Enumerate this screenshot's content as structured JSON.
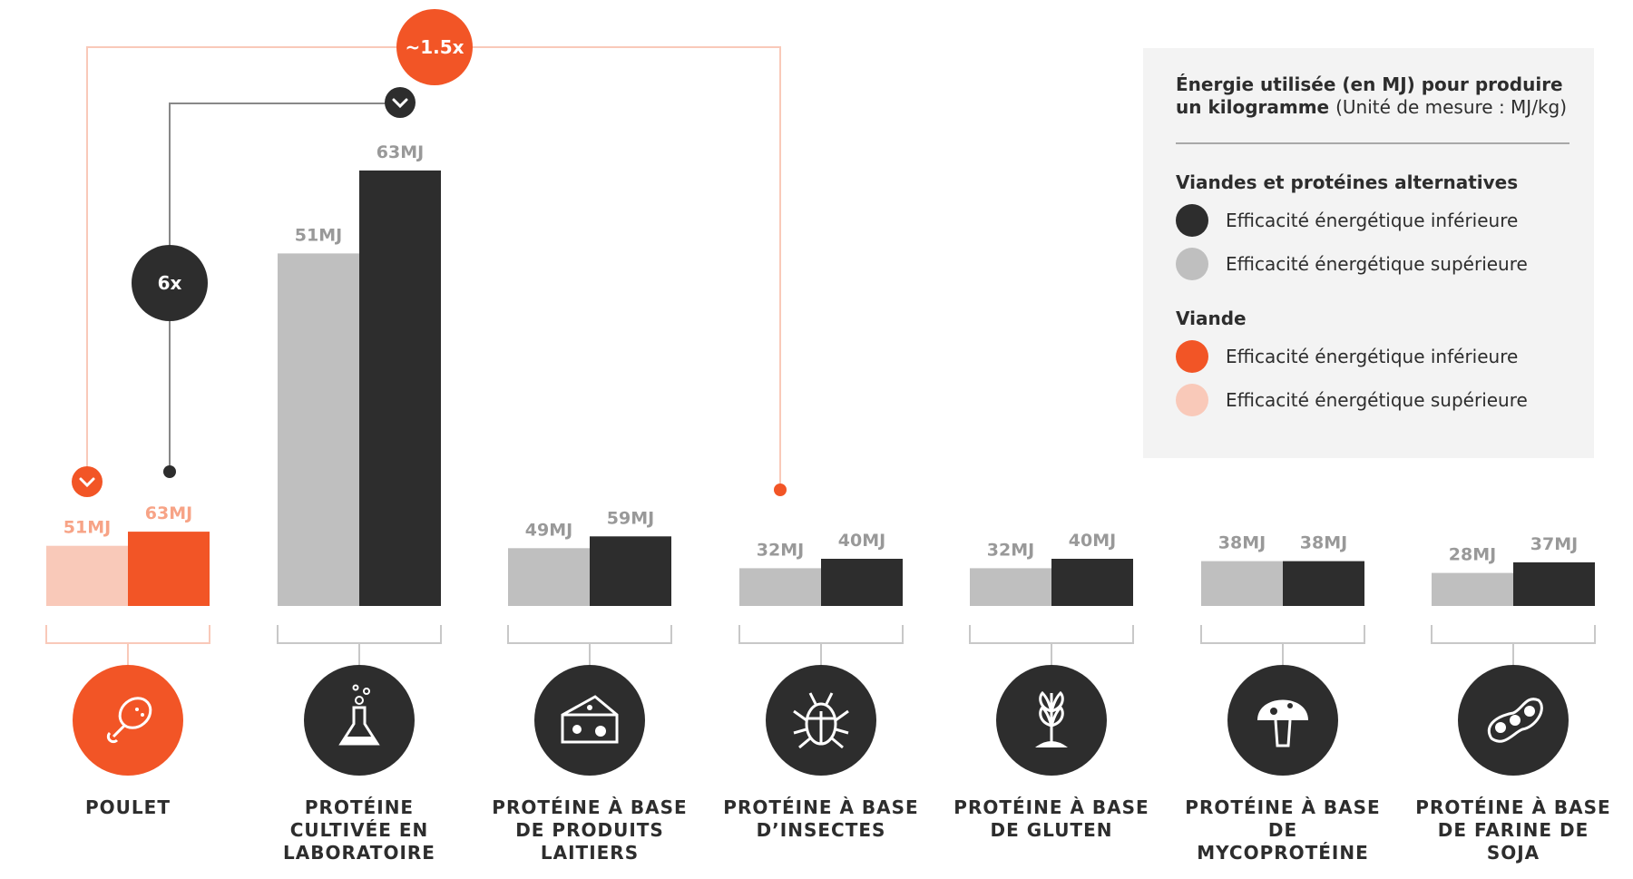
{
  "colors": {
    "orange": "#F25526",
    "light_orange": "#F9C9B9",
    "dark": "#2D2D2D",
    "gray": "#BFBFBF",
    "value_gray": "#999999",
    "value_orange": "#F7A386"
  },
  "legend": {
    "title_bold": "Énergie utilisée (en MJ) pour produire un kilogramme",
    "title_unit": "(Unité de mesure : MJ/kg)",
    "section1": "Viandes et protéines alternatives",
    "section1_items": [
      "Efficacité énergétique inférieure",
      "Efficacité énergétique supérieure"
    ],
    "section2": "Viande",
    "section2_items": [
      "Efficacité énergétique inférieure",
      "Efficacité énergétique supérieure"
    ]
  },
  "annotations": {
    "orange_ratio": "~1.5x",
    "dark_ratio": "6x"
  },
  "chart_data": {
    "type": "bar",
    "ylabel": "Énergie utilisée (en MJ) pour produire un kilogramme (Unité de mesure : MJ/kg)",
    "categories": [
      "POULET",
      "PROTÉINE CULTIVÉE EN LABORATOIRE",
      "PROTÉINE À BASE DE PRODUITS LAITIERS",
      "PROTÉINE À BASE D’INSECTES",
      "PROTÉINE À BASE DE GLUTEN",
      "PROTÉINE À BASE DE MYCOPROTÉINE",
      "PROTÉINE À BASE DE FARINE DE SOJA"
    ],
    "category_lines": [
      [
        "POULET"
      ],
      [
        "PROTÉINE",
        "CULTIVÉE EN",
        "LABORATOIRE"
      ],
      [
        "PROTÉINE À BASE",
        "DE PRODUITS",
        "LAITIERS"
      ],
      [
        "PROTÉINE À BASE",
        "D’INSECTES"
      ],
      [
        "PROTÉINE À BASE",
        "DE GLUTEN"
      ],
      [
        "PROTÉINE À BASE",
        "DE",
        "MYCOPROTÉINE"
      ],
      [
        "PROTÉINE À BASE",
        "DE FARINE DE",
        "SOJA"
      ]
    ],
    "icons": [
      "chicken-leg-icon",
      "flask-icon",
      "cheese-icon",
      "beetle-icon",
      "wheat-icon",
      "mushroom-icon",
      "soybean-icon"
    ],
    "series": [
      {
        "name": "Efficacité énergétique supérieure",
        "values": [
          51,
          51,
          49,
          32,
          32,
          38,
          28
        ]
      },
      {
        "name": "Efficacité énergétique inférieure",
        "values": [
          63,
          63,
          59,
          40,
          40,
          38,
          37
        ]
      }
    ],
    "value_labels": [
      [
        "51MJ",
        "63MJ"
      ],
      [
        "51MJ",
        "63MJ"
      ],
      [
        "49MJ",
        "59MJ"
      ],
      [
        "32MJ",
        "40MJ"
      ],
      [
        "32MJ",
        "40MJ"
      ],
      [
        "38MJ",
        "38MJ"
      ],
      [
        "28MJ",
        "37MJ"
      ]
    ],
    "unit": "MJ",
    "grid": false,
    "legend_position": "top-right"
  }
}
